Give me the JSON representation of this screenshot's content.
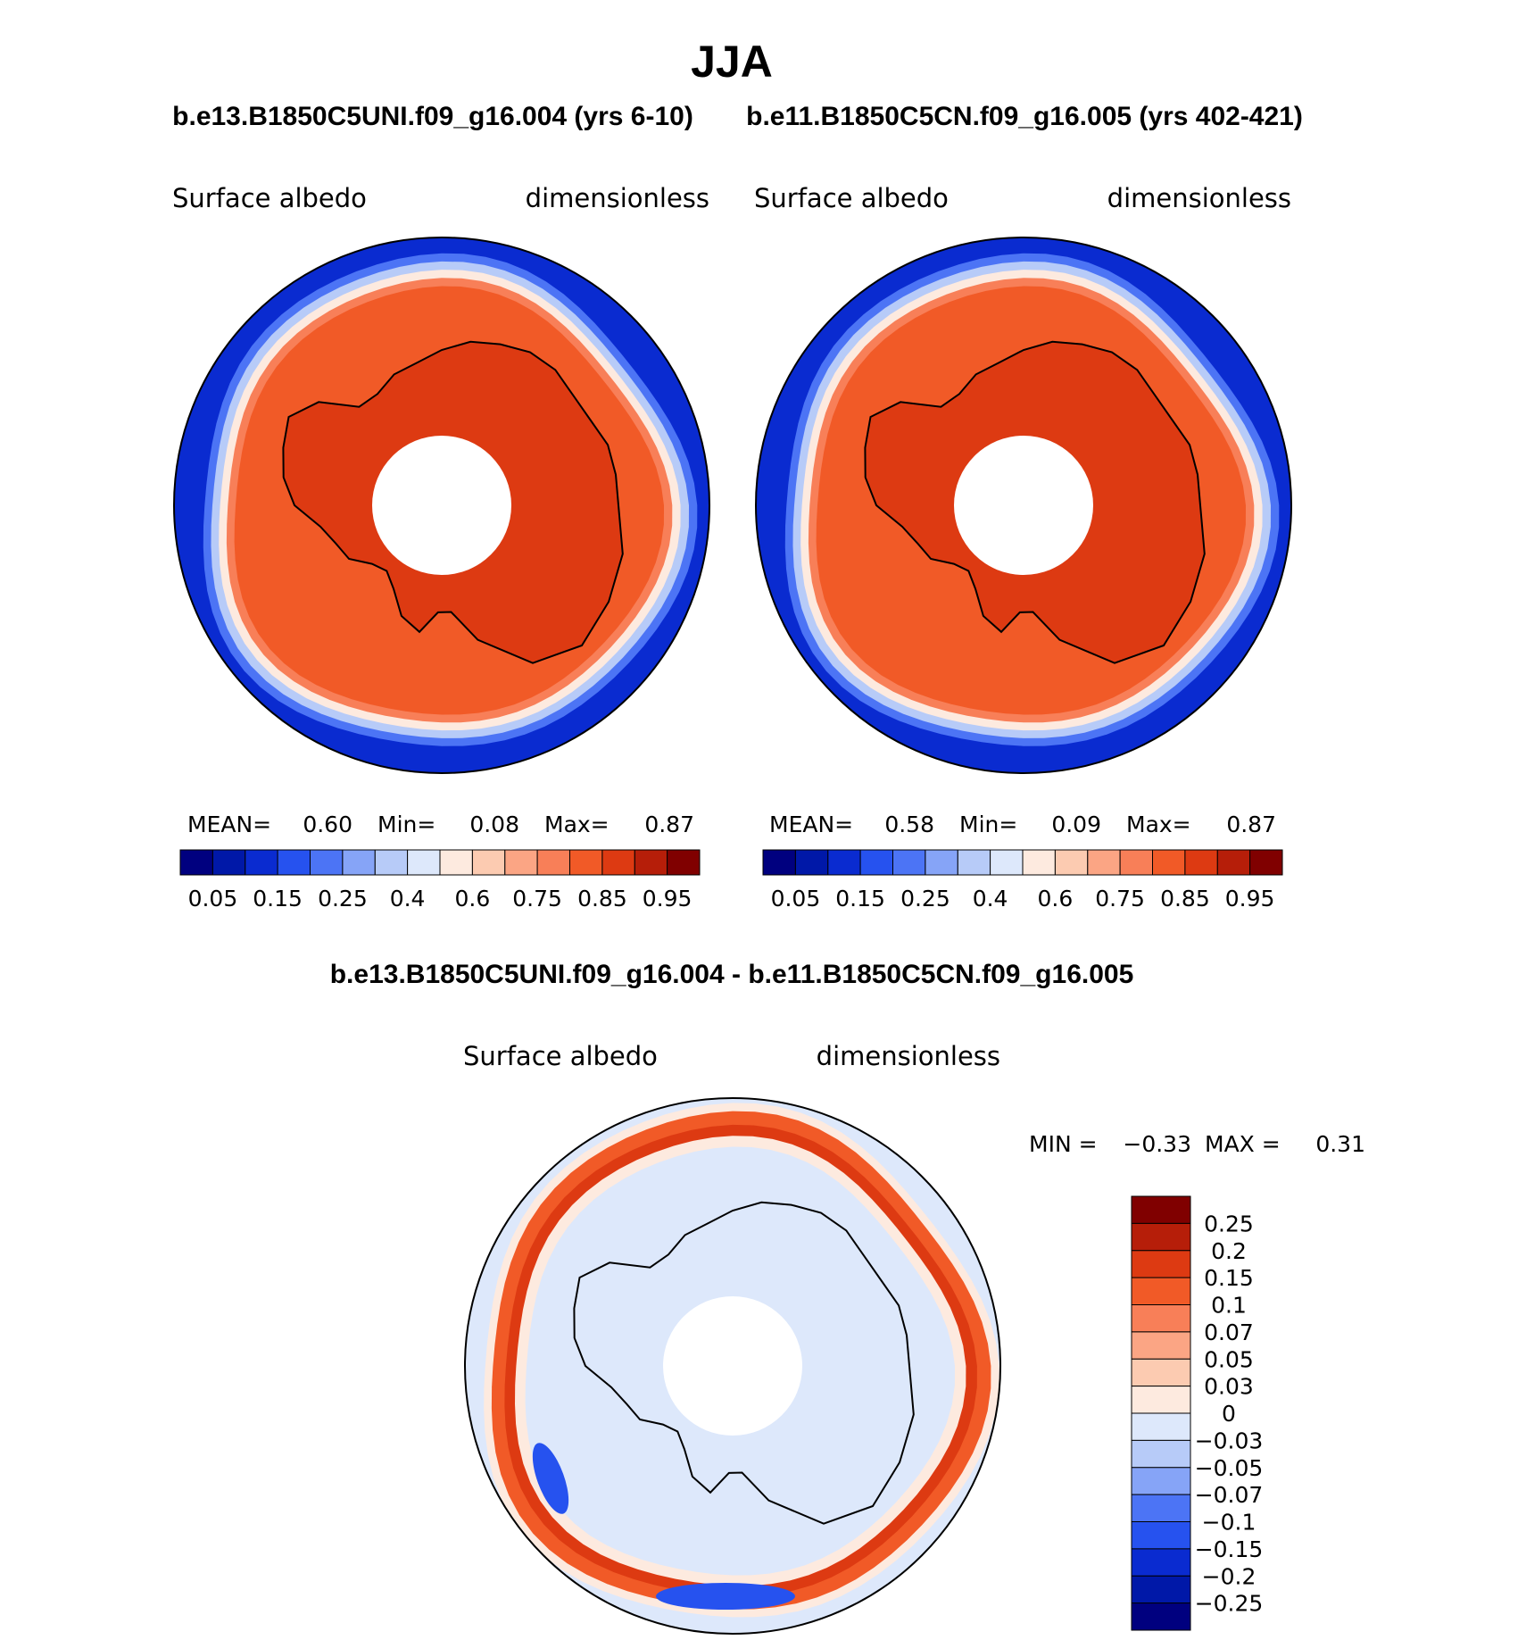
{
  "figure": {
    "title": "JJA",
    "diff_title": "b.e13.B1850C5UNI.f09_g16.004 - b.e11.B1850C5CN.f09_g16.005"
  },
  "chart_data": [
    {
      "type": "heatmap",
      "projection": "south-polar-stereographic",
      "case_title": "b.e13.B1850C5UNI.f09_g16.004 (yrs 6-10)",
      "left_label": "Surface albedo",
      "right_label": "dimensionless",
      "stats": {
        "mean_label": "MEAN=",
        "mean": "0.60",
        "min_label": "Min=",
        "min": "0.08",
        "max_label": "Max=",
        "max": "0.87"
      },
      "levels": [
        0.05,
        0.1,
        0.15,
        0.2,
        0.25,
        0.3,
        0.4,
        0.5,
        0.6,
        0.7,
        0.75,
        0.8,
        0.85,
        0.9,
        0.95
      ],
      "level_labels": [
        "0.05",
        "0.15",
        "0.25",
        "0.4",
        "0.6",
        "0.75",
        "0.85",
        "0.95"
      ],
      "colors": [
        "#00007f",
        "#0018a8",
        "#0a2bd0",
        "#2652ef",
        "#4c74f5",
        "#86a4f7",
        "#b7cbf8",
        "#dde8fb",
        "#fdeadf",
        "#fccbb1",
        "#fba584",
        "#f87f58",
        "#f15a27",
        "#dd3a12",
        "#b61e09",
        "#800000"
      ],
      "ocean_edge_color": "#0a2bd0",
      "ice_color": "#f15a27",
      "continent_color": "#dd3a12"
    },
    {
      "type": "heatmap",
      "projection": "south-polar-stereographic",
      "case_title": "b.e11.B1850C5CN.f09_g16.005 (yrs 402-421)",
      "left_label": "Surface albedo",
      "right_label": "dimensionless",
      "stats": {
        "mean_label": "MEAN=",
        "mean": "0.58",
        "min_label": "Min=",
        "min": "0.09",
        "max_label": "Max=",
        "max": "0.87"
      },
      "levels": [
        0.05,
        0.1,
        0.15,
        0.2,
        0.25,
        0.3,
        0.4,
        0.5,
        0.6,
        0.7,
        0.75,
        0.8,
        0.85,
        0.9,
        0.95
      ],
      "level_labels": [
        "0.05",
        "0.15",
        "0.25",
        "0.4",
        "0.6",
        "0.75",
        "0.85",
        "0.95"
      ],
      "colors": [
        "#00007f",
        "#0018a8",
        "#0a2bd0",
        "#2652ef",
        "#4c74f5",
        "#86a4f7",
        "#b7cbf8",
        "#dde8fb",
        "#fdeadf",
        "#fccbb1",
        "#fba584",
        "#f87f58",
        "#f15a27",
        "#dd3a12",
        "#b61e09",
        "#800000"
      ],
      "ocean_edge_color": "#0a2bd0",
      "ice_color": "#f15a27",
      "continent_color": "#dd3a12"
    },
    {
      "type": "heatmap",
      "projection": "south-polar-stereographic",
      "case_title": "b.e13.B1850C5UNI.f09_g16.004 - b.e11.B1850C5CN.f09_g16.005",
      "left_label": "Surface albedo",
      "right_label": "dimensionless",
      "stats": {
        "min_label": "MIN =",
        "min": "−0.33",
        "max_label": "MAX =",
        "max": "0.31"
      },
      "levels": [
        -0.25,
        -0.2,
        -0.15,
        -0.1,
        -0.07,
        -0.05,
        -0.03,
        0,
        0.03,
        0.05,
        0.07,
        0.1,
        0.15,
        0.2,
        0.25
      ],
      "level_labels": [
        "0.25",
        "0.2",
        "0.15",
        "0.1",
        "0.07",
        "0.05",
        "0.03",
        "0",
        "−0.03",
        "−0.05",
        "−0.07",
        "−0.1",
        "−0.15",
        "−0.2",
        "−0.25"
      ],
      "colors": [
        "#800000",
        "#b61e09",
        "#dd3a12",
        "#f15a27",
        "#f87f58",
        "#fba584",
        "#fccbb1",
        "#fdeadf",
        "#dde8fb",
        "#b7cbf8",
        "#86a4f7",
        "#4c74f5",
        "#2652ef",
        "#0a2bd0",
        "#0018a8",
        "#00007f"
      ],
      "background_color": "#dde8fb",
      "band_color": "#f15a27",
      "band_core_color": "#dd3a12",
      "positive_patch_color": "#fdeadf",
      "negative_patch_color": "#2652ef"
    }
  ]
}
